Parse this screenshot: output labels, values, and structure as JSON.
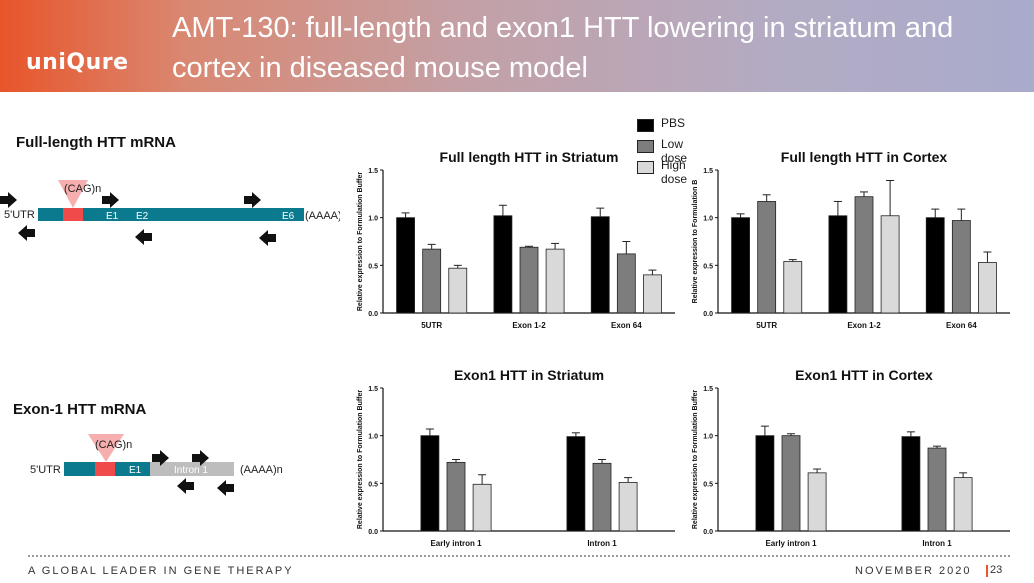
{
  "header": {
    "logo": "uniQure",
    "title": "AMT-130: full-length and exon1 HTT lowering in striatum and cortex in diseased mouse model"
  },
  "sections": {
    "full_length_label": "Full-length HTT mRNA",
    "exon1_label": "Exon-1 HTT mRNA"
  },
  "diagram_top": {
    "cag": "(CAG)n",
    "utr": "5'UTR",
    "e1": "E1",
    "e2": "E2",
    "e6": "E6",
    "polya": "(AAAA)n"
  },
  "diagram_bottom": {
    "cag": "(CAG)n",
    "utr": "5'UTR",
    "e1": "E1",
    "intron": "Intron 1",
    "polya": "(AAAA)n"
  },
  "colors": {
    "teal": "#0b7a8e",
    "cag_red": "#f04a4a",
    "cag_tri": "#f6a0a0",
    "intron_grey": "#bdbdbd",
    "pbs": "#000000",
    "low": "#7d7d7d",
    "high": "#d9d9d9"
  },
  "legend": [
    "PBS",
    "Low dose",
    "High dose"
  ],
  "chart_data": [
    {
      "type": "bar",
      "title": "Full length HTT in Striatum",
      "ylabel": "Relative expression to Formulation Buffer",
      "categories": [
        "5UTR",
        "Exon 1-2",
        "Exon 64"
      ],
      "ylim": [
        0,
        1.5
      ],
      "yticks": [
        "0.0",
        "0.5",
        "1.0",
        "1.5"
      ],
      "series": [
        {
          "name": "PBS",
          "values": [
            1.0,
            1.02,
            1.01
          ],
          "errors": [
            0.05,
            0.11,
            0.09
          ]
        },
        {
          "name": "Low dose",
          "values": [
            0.67,
            0.69,
            0.62
          ],
          "errors": [
            0.05,
            0.01,
            0.13
          ]
        },
        {
          "name": "High dose",
          "values": [
            0.47,
            0.67,
            0.4
          ],
          "errors": [
            0.03,
            0.06,
            0.05
          ]
        }
      ]
    },
    {
      "type": "bar",
      "title": "Full length HTT in Cortex",
      "ylabel": "Relative expression to Formulation B",
      "categories": [
        "5UTR",
        "Exon 1-2",
        "Exon 64"
      ],
      "ylim": [
        0,
        1.5
      ],
      "yticks": [
        "0.0",
        "0.5",
        "1.0",
        "1.5"
      ],
      "series": [
        {
          "name": "PBS",
          "values": [
            1.0,
            1.02,
            1.0
          ],
          "errors": [
            0.04,
            0.15,
            0.09
          ]
        },
        {
          "name": "Low dose",
          "values": [
            1.17,
            1.22,
            0.97
          ],
          "errors": [
            0.07,
            0.05,
            0.12
          ]
        },
        {
          "name": "High dose",
          "values": [
            0.54,
            1.02,
            0.53
          ],
          "errors": [
            0.02,
            0.37,
            0.11
          ]
        }
      ]
    },
    {
      "type": "bar",
      "title": "Exon1 HTT in Striatum",
      "ylabel": "Relative expression to Formulation Buffer",
      "categories": [
        "Early intron 1",
        "Intron 1"
      ],
      "ylim": [
        0,
        1.5
      ],
      "yticks": [
        "0.0",
        "0.5",
        "1.0",
        "1.5"
      ],
      "series": [
        {
          "name": "PBS",
          "values": [
            1.0,
            0.99
          ],
          "errors": [
            0.07,
            0.04
          ]
        },
        {
          "name": "Low dose",
          "values": [
            0.72,
            0.71
          ],
          "errors": [
            0.03,
            0.04
          ]
        },
        {
          "name": "High dose",
          "values": [
            0.49,
            0.51
          ],
          "errors": [
            0.1,
            0.05
          ]
        }
      ]
    },
    {
      "type": "bar",
      "title": "Exon1 HTT in Cortex",
      "ylabel": "Relative expression to Formulation Buffer",
      "categories": [
        "Early intron 1",
        "Intron 1"
      ],
      "ylim": [
        0,
        1.5
      ],
      "yticks": [
        "0.0",
        "0.5",
        "1.0",
        "1.5"
      ],
      "series": [
        {
          "name": "PBS",
          "values": [
            1.0,
            0.99
          ],
          "errors": [
            0.1,
            0.05
          ]
        },
        {
          "name": "Low dose",
          "values": [
            1.0,
            0.87
          ],
          "errors": [
            0.02,
            0.02
          ]
        },
        {
          "name": "High dose",
          "values": [
            0.61,
            0.56
          ],
          "errors": [
            0.04,
            0.05
          ]
        }
      ]
    }
  ],
  "footer": {
    "tagline": "A GLOBAL LEADER IN GENE THERAPY",
    "date": "NOVEMBER 2020",
    "page": "23"
  }
}
